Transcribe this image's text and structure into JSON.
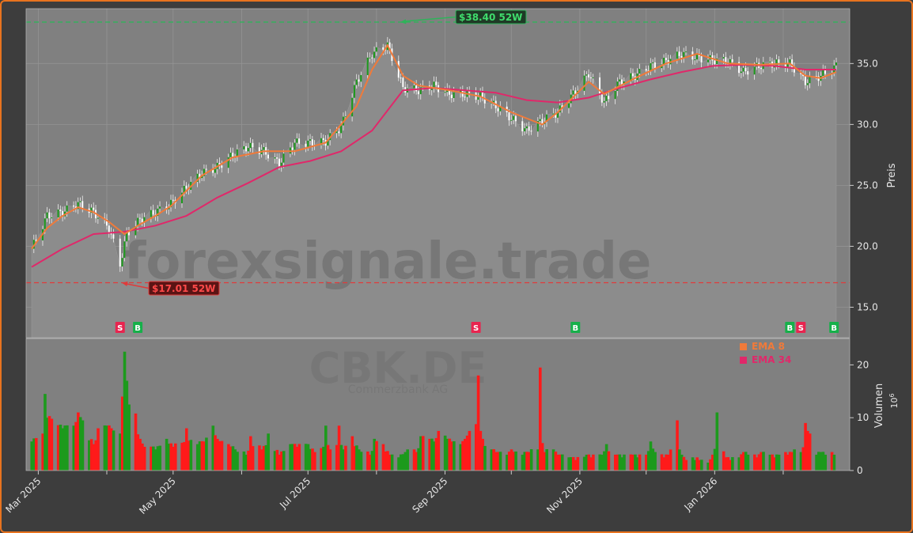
{
  "watermark": "forexsignale.trade",
  "ticker": "CBK.DE",
  "company": "Commerzbank AG",
  "colors": {
    "up": "#1c9a1c",
    "down": "#ff1a1a",
    "ema8": "#f07a3a",
    "ema34": "#e0286a",
    "high_line": "#2fb35a",
    "low_line": "#e03a3a",
    "panel": "#808080",
    "background": "#3d3d3d",
    "border": "#e8731f"
  },
  "chart_data": [
    {
      "type": "line",
      "panel": "price",
      "ylabel": "Preis",
      "ylim": [
        12.5,
        39.5
      ],
      "yticks": [
        "15.0",
        "20.0",
        "25.0",
        "30.0",
        "35.0"
      ],
      "x_range": [
        "2025-02-26",
        "2026-02-25"
      ],
      "xticks": [
        "Mar 2025",
        "May 2025",
        "Jul 2025",
        "Sep 2025",
        "Nov 2025",
        "Jan 2026"
      ],
      "close_series": {
        "dates": [
          "2025-02-26",
          "2025-03-05",
          "2025-03-12",
          "2025-03-19",
          "2025-03-26",
          "2025-04-02",
          "2025-04-07",
          "2025-04-10",
          "2025-04-16",
          "2025-04-23",
          "2025-04-30",
          "2025-05-07",
          "2025-05-14",
          "2025-05-21",
          "2025-05-28",
          "2025-06-04",
          "2025-06-11",
          "2025-06-18",
          "2025-06-25",
          "2025-07-02",
          "2025-07-09",
          "2025-07-16",
          "2025-07-23",
          "2025-07-30",
          "2025-08-06",
          "2025-08-13",
          "2025-08-20",
          "2025-08-27",
          "2025-09-03",
          "2025-09-10",
          "2025-09-17",
          "2025-09-24",
          "2025-10-01",
          "2025-10-08",
          "2025-10-15",
          "2025-10-22",
          "2025-10-29",
          "2025-11-05",
          "2025-11-12",
          "2025-11-19",
          "2025-11-26",
          "2025-12-03",
          "2025-12-10",
          "2025-12-17",
          "2025-12-24",
          "2025-12-31",
          "2026-01-07",
          "2026-01-14",
          "2026-01-21",
          "2026-01-28",
          "2026-02-04",
          "2026-02-11",
          "2026-02-18",
          "2026-02-25"
        ],
        "values": [
          19.8,
          22.5,
          22.8,
          23.5,
          22.8,
          21.5,
          18.5,
          21.0,
          22.2,
          22.8,
          23.5,
          24.8,
          26.0,
          26.5,
          27.5,
          28.2,
          27.8,
          26.8,
          28.5,
          28.5,
          28.6,
          29.8,
          33.5,
          35.8,
          36.5,
          33.0,
          32.8,
          33.2,
          32.5,
          32.5,
          32.3,
          31.5,
          30.5,
          29.5,
          30.3,
          31.0,
          32.5,
          34.2,
          31.8,
          33.5,
          34.0,
          34.8,
          35.2,
          35.8,
          35.5,
          35.3,
          35.2,
          34.3,
          34.8,
          35.0,
          35.0,
          33.5,
          34.0,
          34.8
        ]
      },
      "series": [
        {
          "name": "EMA 8",
          "dates": [
            "2025-02-26",
            "2025-03-05",
            "2025-03-12",
            "2025-03-19",
            "2025-03-26",
            "2025-04-02",
            "2025-04-09",
            "2025-04-16",
            "2025-04-23",
            "2025-04-30",
            "2025-05-14",
            "2025-05-28",
            "2025-06-11",
            "2025-06-25",
            "2025-07-09",
            "2025-07-23",
            "2025-07-30",
            "2025-08-06",
            "2025-08-13",
            "2025-08-20",
            "2025-09-03",
            "2025-09-17",
            "2025-10-01",
            "2025-10-15",
            "2025-10-22",
            "2025-11-05",
            "2025-11-12",
            "2025-11-26",
            "2025-12-10",
            "2025-12-24",
            "2026-01-07",
            "2026-01-21",
            "2026-02-04",
            "2026-02-11",
            "2026-02-18",
            "2026-02-25"
          ],
          "values": [
            19.8,
            21.5,
            22.5,
            23.2,
            22.8,
            22.0,
            21.0,
            21.8,
            22.5,
            23.3,
            25.8,
            27.3,
            27.8,
            27.8,
            28.5,
            31.5,
            34.5,
            36.5,
            34.0,
            33.2,
            32.8,
            32.3,
            31.0,
            30.0,
            31.0,
            33.5,
            32.5,
            33.8,
            35.0,
            35.8,
            35.0,
            34.9,
            35.0,
            34.0,
            33.8,
            34.3
          ]
        },
        {
          "name": "EMA 34",
          "dates": [
            "2025-02-26",
            "2025-03-12",
            "2025-03-26",
            "2025-04-09",
            "2025-04-23",
            "2025-05-07",
            "2025-05-21",
            "2025-06-04",
            "2025-06-18",
            "2025-07-02",
            "2025-07-16",
            "2025-07-30",
            "2025-08-13",
            "2025-08-27",
            "2025-09-10",
            "2025-09-24",
            "2025-10-08",
            "2025-10-22",
            "2025-11-05",
            "2025-11-19",
            "2025-12-03",
            "2025-12-17",
            "2025-12-31",
            "2026-01-14",
            "2026-01-28",
            "2026-02-11",
            "2026-02-25"
          ],
          "values": [
            18.3,
            19.8,
            21.0,
            21.2,
            21.7,
            22.5,
            24.0,
            25.2,
            26.5,
            27.0,
            27.8,
            29.5,
            32.8,
            33.0,
            32.8,
            32.6,
            32.0,
            31.8,
            32.2,
            33.0,
            33.7,
            34.3,
            34.8,
            34.9,
            34.8,
            34.5,
            34.5
          ]
        }
      ],
      "annotations": [
        {
          "label": "$38.40 52W",
          "value": 38.4,
          "date": "2025-08-11",
          "kind": "52w-high"
        },
        {
          "label": "$17.01 52W",
          "value": 17.01,
          "date": "2025-04-07",
          "kind": "52w-low"
        }
      ],
      "signals": [
        {
          "label": "S",
          "date": "2025-04-07",
          "kind": "sell"
        },
        {
          "label": "B",
          "date": "2025-04-15",
          "kind": "buy"
        },
        {
          "label": "S",
          "date": "2025-09-15",
          "kind": "sell"
        },
        {
          "label": "B",
          "date": "2025-10-30",
          "kind": "buy"
        },
        {
          "label": "B",
          "date": "2026-02-04",
          "kind": "buy"
        },
        {
          "label": "S",
          "date": "2026-02-09",
          "kind": "sell"
        },
        {
          "label": "B",
          "date": "2026-02-24",
          "kind": "buy"
        }
      ]
    },
    {
      "type": "bar",
      "panel": "volume",
      "ylabel": "Volumen",
      "yunit": "10^6",
      "ylim": [
        0,
        25
      ],
      "yticks": [
        "0",
        "10",
        "20"
      ],
      "legend": [
        {
          "name": "EMA 8"
        },
        {
          "name": "EMA 34"
        }
      ],
      "legend_position": "top-right",
      "start_date": "2025-02-26",
      "trading_days": 260,
      "samples": [
        {
          "i": 0,
          "v": 5.5,
          "up": true
        },
        {
          "i": 3,
          "v": 7.0,
          "up": false
        },
        {
          "i": 4,
          "v": 14.5,
          "up": true
        },
        {
          "i": 5,
          "v": 10.0,
          "up": true
        },
        {
          "i": 7,
          "v": 9.8,
          "up": false
        },
        {
          "i": 10,
          "v": 8.0,
          "up": true
        },
        {
          "i": 13,
          "v": 8.5,
          "up": true
        },
        {
          "i": 15,
          "v": 11.0,
          "up": false
        },
        {
          "i": 17,
          "v": 9.5,
          "up": true
        },
        {
          "i": 20,
          "v": 5.0,
          "up": false
        },
        {
          "i": 22,
          "v": 8.0,
          "up": false
        },
        {
          "i": 24,
          "v": 8.5,
          "up": true
        },
        {
          "i": 26,
          "v": 8.0,
          "up": false
        },
        {
          "i": 28,
          "v": 7.0,
          "up": true
        },
        {
          "i": 29,
          "v": 14.0,
          "up": false
        },
        {
          "i": 30,
          "v": 22.5,
          "up": true
        },
        {
          "i": 31,
          "v": 17.0,
          "up": true
        },
        {
          "i": 32,
          "v": 12.5,
          "up": true
        },
        {
          "i": 33,
          "v": 10.8,
          "up": false
        },
        {
          "i": 35,
          "v": 6.0,
          "up": false
        },
        {
          "i": 37,
          "v": 4.5,
          "up": false
        },
        {
          "i": 40,
          "v": 4.0,
          "up": true
        },
        {
          "i": 43,
          "v": 6.0,
          "up": true
        },
        {
          "i": 46,
          "v": 4.5,
          "up": false
        },
        {
          "i": 50,
          "v": 8.0,
          "up": false
        },
        {
          "i": 53,
          "v": 5.0,
          "up": true
        },
        {
          "i": 56,
          "v": 5.5,
          "up": false
        },
        {
          "i": 58,
          "v": 8.5,
          "up": true
        },
        {
          "i": 60,
          "v": 6.0,
          "up": false
        },
        {
          "i": 63,
          "v": 5.0,
          "up": false
        },
        {
          "i": 66,
          "v": 4.0,
          "up": true
        },
        {
          "i": 69,
          "v": 3.0,
          "up": true
        },
        {
          "i": 71,
          "v": 6.5,
          "up": false
        },
        {
          "i": 74,
          "v": 4.0,
          "up": false
        },
        {
          "i": 77,
          "v": 7.0,
          "up": true
        },
        {
          "i": 80,
          "v": 3.0,
          "up": false
        },
        {
          "i": 83,
          "v": 5.0,
          "up": true
        },
        {
          "i": 86,
          "v": 4.5,
          "up": false
        },
        {
          "i": 89,
          "v": 5.0,
          "up": true
        },
        {
          "i": 92,
          "v": 3.5,
          "up": false
        },
        {
          "i": 95,
          "v": 8.5,
          "up": true
        },
        {
          "i": 97,
          "v": 4.0,
          "up": false
        },
        {
          "i": 99,
          "v": 8.5,
          "up": false
        },
        {
          "i": 101,
          "v": 4.0,
          "up": true
        },
        {
          "i": 103,
          "v": 6.5,
          "up": false
        },
        {
          "i": 106,
          "v": 4.0,
          "up": true
        },
        {
          "i": 109,
          "v": 3.0,
          "up": false
        },
        {
          "i": 111,
          "v": 6.0,
          "up": true
        },
        {
          "i": 113,
          "v": 5.0,
          "up": false
        },
        {
          "i": 116,
          "v": 3.0,
          "up": false
        },
        {
          "i": 118,
          "v": 2.5,
          "up": true
        },
        {
          "i": 121,
          "v": 3.5,
          "up": true
        },
        {
          "i": 124,
          "v": 3.5,
          "up": false
        },
        {
          "i": 126,
          "v": 6.5,
          "up": true
        },
        {
          "i": 128,
          "v": 6.0,
          "up": false
        },
        {
          "i": 130,
          "v": 5.5,
          "up": true
        },
        {
          "i": 132,
          "v": 7.5,
          "up": false
        },
        {
          "i": 134,
          "v": 6.0,
          "up": true
        },
        {
          "i": 136,
          "v": 5.5,
          "up": false
        },
        {
          "i": 138,
          "v": 5.0,
          "up": true
        },
        {
          "i": 140,
          "v": 6.0,
          "up": false
        },
        {
          "i": 142,
          "v": 7.5,
          "up": false
        },
        {
          "i": 144,
          "v": 18.0,
          "up": false
        },
        {
          "i": 145,
          "v": 7.5,
          "up": false
        },
        {
          "i": 146,
          "v": 6.0,
          "up": false
        },
        {
          "i": 148,
          "v": 4.0,
          "up": true
        },
        {
          "i": 150,
          "v": 3.5,
          "up": false
        },
        {
          "i": 153,
          "v": 3.0,
          "up": true
        },
        {
          "i": 155,
          "v": 4.0,
          "up": false
        },
        {
          "i": 158,
          "v": 3.0,
          "up": true
        },
        {
          "i": 161,
          "v": 3.5,
          "up": false
        },
        {
          "i": 163,
          "v": 4.0,
          "up": true
        },
        {
          "i": 164,
          "v": 19.5,
          "up": false
        },
        {
          "i": 166,
          "v": 3.5,
          "up": false
        },
        {
          "i": 168,
          "v": 4.0,
          "up": true
        },
        {
          "i": 170,
          "v": 3.0,
          "up": false
        },
        {
          "i": 173,
          "v": 2.5,
          "up": true
        },
        {
          "i": 176,
          "v": 2.0,
          "up": false
        },
        {
          "i": 179,
          "v": 3.0,
          "up": true
        },
        {
          "i": 181,
          "v": 2.5,
          "up": false
        },
        {
          "i": 184,
          "v": 3.0,
          "up": true
        },
        {
          "i": 186,
          "v": 5.0,
          "up": true
        },
        {
          "i": 188,
          "v": 3.0,
          "up": false
        },
        {
          "i": 191,
          "v": 2.5,
          "up": true
        },
        {
          "i": 194,
          "v": 3.0,
          "up": false
        },
        {
          "i": 196,
          "v": 2.5,
          "up": true
        },
        {
          "i": 198,
          "v": 3.0,
          "up": false
        },
        {
          "i": 200,
          "v": 5.5,
          "up": true
        },
        {
          "i": 202,
          "v": 3.5,
          "up": true
        },
        {
          "i": 204,
          "v": 2.5,
          "up": false
        },
        {
          "i": 206,
          "v": 3.0,
          "up": false
        },
        {
          "i": 208,
          "v": 9.5,
          "up": false
        },
        {
          "i": 210,
          "v": 3.0,
          "up": true
        },
        {
          "i": 212,
          "v": 2.0,
          "up": false
        },
        {
          "i": 214,
          "v": 2.0,
          "up": true
        },
        {
          "i": 216,
          "v": 2.0,
          "up": false
        },
        {
          "i": 218,
          "v": 1.5,
          "up": true
        },
        {
          "i": 220,
          "v": 3.0,
          "up": false
        },
        {
          "i": 222,
          "v": 11.0,
          "up": true
        },
        {
          "i": 224,
          "v": 2.5,
          "up": false
        },
        {
          "i": 226,
          "v": 2.0,
          "up": false
        },
        {
          "i": 228,
          "v": 2.5,
          "up": true
        },
        {
          "i": 230,
          "v": 3.5,
          "up": false
        },
        {
          "i": 232,
          "v": 3.0,
          "up": true
        },
        {
          "i": 234,
          "v": 2.5,
          "up": false
        },
        {
          "i": 236,
          "v": 3.5,
          "up": false
        },
        {
          "i": 238,
          "v": 3.0,
          "up": true
        },
        {
          "i": 240,
          "v": 2.5,
          "up": false
        },
        {
          "i": 242,
          "v": 3.0,
          "up": true
        },
        {
          "i": 244,
          "v": 3.0,
          "up": false
        },
        {
          "i": 246,
          "v": 3.5,
          "up": false
        },
        {
          "i": 248,
          "v": 3.5,
          "up": true
        },
        {
          "i": 250,
          "v": 9.0,
          "up": false
        },
        {
          "i": 251,
          "v": 7.5,
          "up": false
        },
        {
          "i": 252,
          "v": 7.0,
          "up": false
        },
        {
          "i": 253,
          "v": 3.0,
          "up": true
        },
        {
          "i": 255,
          "v": 3.5,
          "up": true
        },
        {
          "i": 257,
          "v": 3.0,
          "up": true
        },
        {
          "i": 258,
          "v": 3.5,
          "up": false
        },
        {
          "i": 259,
          "v": 3.0,
          "up": true
        }
      ]
    }
  ]
}
